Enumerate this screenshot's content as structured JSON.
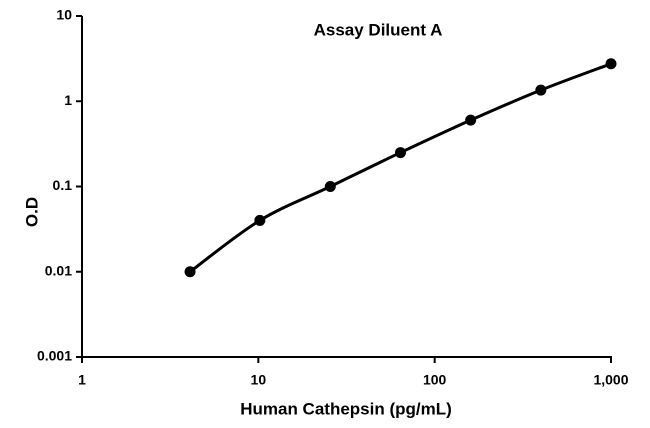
{
  "chart_data": {
    "type": "line",
    "title": "Assay Diluent A",
    "x_label": "Human Cathepsin (pg/mL)",
    "y_label": "O.D",
    "x": [
      4.1,
      10.2,
      25.6,
      64,
      160,
      400,
      1000
    ],
    "series": [
      {
        "name": "Assay Diluent A",
        "color": "#000000",
        "values": [
          0.01,
          0.04,
          0.1,
          0.25,
          0.6,
          1.35,
          2.75
        ]
      }
    ],
    "xlim": [
      1,
      1000
    ],
    "ylim": [
      0.001,
      10
    ],
    "xticks": [
      1,
      10,
      100,
      {
        "value": 1000,
        "label": "1,000"
      }
    ],
    "yticks": [
      0.001,
      0.01,
      0.1,
      1,
      10
    ],
    "xscale": "log",
    "yscale": "log",
    "grid": false
  }
}
